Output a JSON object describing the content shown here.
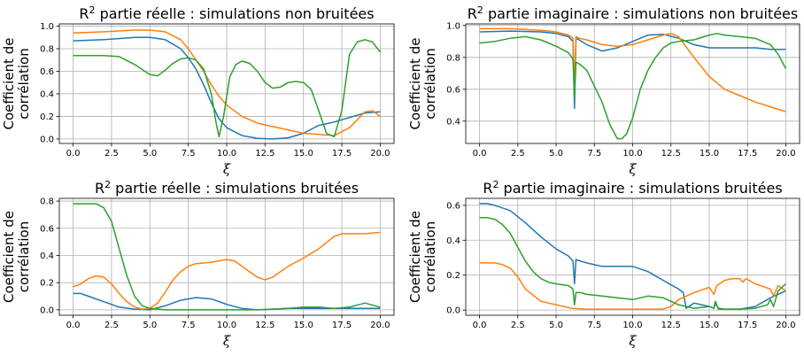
{
  "figure": {
    "colors": [
      "#1f77b4",
      "#ff7f0e",
      "#2ca02c"
    ],
    "grid": true
  },
  "chart_data": [
    {
      "type": "line",
      "title_base": "R",
      "title_sup": "2",
      "title_rest": " partie réelle : simulations non bruitées",
      "xlabel": "ξ",
      "ylabel_lines": [
        "Coefficient de",
        "corrélation"
      ],
      "xlim": [
        -0.9,
        20.9
      ],
      "ylim": [
        -0.04,
        1.02
      ],
      "xticks": [
        0,
        2.5,
        5,
        7.5,
        10,
        12.5,
        15,
        17.5,
        20
      ],
      "xtick_labels": [
        "0.0",
        "2.5",
        "5.0",
        "7.5",
        "10.0",
        "12.5",
        "15.0",
        "17.5",
        "20.0"
      ],
      "yticks": [
        0,
        0.2,
        0.4,
        0.6,
        0.8,
        1.0
      ],
      "ytick_labels": [
        "0.0",
        "0.2",
        "0.4",
        "0.6",
        "0.8",
        "1.0"
      ],
      "series": [
        {
          "x": [
            0,
            2,
            4,
            5,
            6,
            7,
            7.5,
            8,
            8.5,
            9,
            9.5,
            10,
            11,
            12,
            13,
            14,
            15,
            16,
            17,
            18,
            19,
            20
          ],
          "values": [
            0.87,
            0.88,
            0.9,
            0.9,
            0.88,
            0.8,
            0.72,
            0.62,
            0.48,
            0.32,
            0.18,
            0.1,
            0.03,
            0.005,
            0.0,
            0.01,
            0.05,
            0.12,
            0.15,
            0.19,
            0.23,
            0.24
          ]
        },
        {
          "x": [
            0,
            2,
            4,
            5,
            6,
            7,
            7.5,
            8,
            8.5,
            9,
            9.5,
            10,
            11,
            12,
            13,
            14,
            15,
            16,
            17,
            18,
            19,
            19.5,
            20
          ],
          "values": [
            0.94,
            0.95,
            0.965,
            0.965,
            0.95,
            0.88,
            0.8,
            0.7,
            0.6,
            0.48,
            0.38,
            0.3,
            0.2,
            0.14,
            0.11,
            0.08,
            0.05,
            0.04,
            0.03,
            0.1,
            0.24,
            0.25,
            0.2
          ]
        },
        {
          "x": [
            0,
            2,
            3,
            4,
            5,
            5.5,
            6,
            6.5,
            7,
            7.5,
            8,
            8.5,
            9,
            9.3,
            9.5,
            9.8,
            10.2,
            10.6,
            11,
            11.5,
            12,
            12.5,
            13,
            13.5,
            14,
            14.5,
            15,
            15.5,
            16,
            16.5,
            17,
            17.5,
            18,
            18.5,
            19,
            19.5,
            20
          ],
          "values": [
            0.74,
            0.74,
            0.73,
            0.66,
            0.57,
            0.56,
            0.61,
            0.67,
            0.71,
            0.72,
            0.7,
            0.62,
            0.4,
            0.15,
            0.02,
            0.2,
            0.55,
            0.66,
            0.69,
            0.67,
            0.6,
            0.5,
            0.45,
            0.46,
            0.5,
            0.51,
            0.5,
            0.44,
            0.25,
            0.05,
            0.02,
            0.25,
            0.75,
            0.86,
            0.88,
            0.86,
            0.77
          ]
        }
      ]
    },
    {
      "type": "line",
      "title_base": "R",
      "title_sup": "2",
      "title_rest": " partie imaginaire : simulations non bruitées",
      "xlabel": "ξ",
      "ylabel_lines": [
        "Coefficient de",
        "corrélation"
      ],
      "xlim": [
        -0.9,
        20.9
      ],
      "ylim": [
        0.26,
        1.01
      ],
      "xticks": [
        0,
        2.5,
        5,
        7.5,
        10,
        12.5,
        15,
        17.5,
        20
      ],
      "xtick_labels": [
        "0.0",
        "2.5",
        "5.0",
        "7.5",
        "10.0",
        "12.5",
        "15.0",
        "17.5",
        "20.0"
      ],
      "yticks": [
        0.4,
        0.6,
        0.8,
        1.0
      ],
      "ytick_labels": [
        "0.4",
        "0.6",
        "0.8",
        "1.0"
      ],
      "series": [
        {
          "x": [
            0,
            2,
            4,
            5,
            5.8,
            6.1,
            6.2,
            6.3,
            6.5,
            7,
            8,
            9,
            10,
            11,
            12,
            13,
            14,
            15,
            16,
            17,
            18,
            19,
            20
          ],
          "values": [
            0.96,
            0.965,
            0.96,
            0.95,
            0.93,
            0.9,
            0.48,
            0.92,
            0.91,
            0.88,
            0.84,
            0.86,
            0.9,
            0.94,
            0.945,
            0.92,
            0.88,
            0.86,
            0.86,
            0.86,
            0.86,
            0.85,
            0.85
          ]
        },
        {
          "x": [
            0,
            2,
            4,
            5,
            5.8,
            6.1,
            6.2,
            6.3,
            6.5,
            7,
            8,
            9,
            10,
            11,
            12,
            12.5,
            13,
            14,
            15,
            16,
            17,
            18,
            19,
            20
          ],
          "values": [
            0.98,
            0.98,
            0.97,
            0.96,
            0.94,
            0.92,
            0.62,
            0.93,
            0.92,
            0.91,
            0.88,
            0.87,
            0.88,
            0.91,
            0.94,
            0.95,
            0.93,
            0.8,
            0.68,
            0.6,
            0.56,
            0.52,
            0.49,
            0.46
          ]
        },
        {
          "x": [
            0,
            1,
            2,
            3,
            4,
            5,
            5.8,
            6.1,
            6.2,
            6.3,
            6.5,
            7,
            8,
            8.5,
            9,
            9.3,
            9.6,
            10,
            10.5,
            11,
            11.5,
            12,
            12.5,
            13,
            14,
            15,
            15.5,
            16,
            17,
            18,
            19,
            19.5,
            20
          ],
          "values": [
            0.89,
            0.9,
            0.92,
            0.93,
            0.91,
            0.87,
            0.83,
            0.79,
            0.55,
            0.77,
            0.76,
            0.72,
            0.52,
            0.38,
            0.29,
            0.29,
            0.32,
            0.42,
            0.6,
            0.72,
            0.8,
            0.86,
            0.89,
            0.9,
            0.91,
            0.94,
            0.95,
            0.94,
            0.93,
            0.92,
            0.88,
            0.82,
            0.73
          ]
        }
      ]
    },
    {
      "type": "line",
      "title_base": "R",
      "title_sup": "2",
      "title_rest": " partie réelle : simulations bruitées",
      "xlabel": "ξ",
      "ylabel_lines": [
        "Coefficient de",
        "corrélation"
      ],
      "xlim": [
        -0.9,
        20.9
      ],
      "ylim": [
        -0.04,
        0.82
      ],
      "xticks": [
        0,
        2.5,
        5,
        7.5,
        10,
        12.5,
        15,
        17.5,
        20
      ],
      "xtick_labels": [
        "0.0",
        "2.5",
        "5.0",
        "7.5",
        "10.0",
        "12.5",
        "15.0",
        "17.5",
        "20.0"
      ],
      "yticks": [
        0,
        0.2,
        0.4,
        0.6,
        0.8
      ],
      "ytick_labels": [
        "0.0",
        "0.2",
        "0.4",
        "0.6",
        "0.8"
      ],
      "series": [
        {
          "x": [
            0,
            0.5,
            1,
            2,
            3,
            4,
            5,
            6,
            7,
            8,
            9,
            10,
            11,
            12,
            13,
            14,
            15,
            16,
            17,
            18,
            19,
            20
          ],
          "values": [
            0.12,
            0.12,
            0.1,
            0.06,
            0.02,
            0.005,
            0.0,
            0.03,
            0.07,
            0.09,
            0.08,
            0.04,
            0.01,
            0.0,
            0.005,
            0.01,
            0.01,
            0.01,
            0.01,
            0.01,
            0.01,
            0.01
          ]
        },
        {
          "x": [
            0,
            0.5,
            1,
            1.5,
            2,
            2.5,
            3,
            3.5,
            4,
            4.5,
            5,
            5.5,
            6,
            6.5,
            7,
            7.5,
            8,
            9,
            10,
            10.5,
            11,
            12,
            12.5,
            13,
            14,
            15,
            16,
            17,
            17.5,
            18,
            19,
            20
          ],
          "values": [
            0.17,
            0.19,
            0.23,
            0.25,
            0.24,
            0.19,
            0.12,
            0.06,
            0.02,
            0.005,
            0.01,
            0.05,
            0.13,
            0.22,
            0.28,
            0.32,
            0.34,
            0.35,
            0.37,
            0.36,
            0.32,
            0.24,
            0.22,
            0.24,
            0.32,
            0.38,
            0.45,
            0.54,
            0.56,
            0.56,
            0.56,
            0.57
          ]
        },
        {
          "x": [
            0,
            0.5,
            1,
            1.5,
            2,
            2.5,
            3,
            3.5,
            4,
            4.5,
            5,
            5.5,
            6,
            7,
            8,
            10,
            12,
            14,
            15,
            16,
            17,
            18,
            19,
            20
          ],
          "values": [
            0.78,
            0.78,
            0.78,
            0.78,
            0.75,
            0.65,
            0.45,
            0.25,
            0.1,
            0.03,
            0.01,
            0.005,
            0.0,
            0.0,
            0.0,
            0.0,
            0.0,
            0.01,
            0.02,
            0.02,
            0.01,
            0.02,
            0.05,
            0.02
          ]
        }
      ]
    },
    {
      "type": "line",
      "title_base": "R",
      "title_sup": "2",
      "title_rest": " partie imaginaire : simulations bruitées",
      "xlabel": "ξ",
      "ylabel_lines": [
        "Coefficient de",
        "corrélation"
      ],
      "xlim": [
        -0.9,
        20.9
      ],
      "ylim": [
        -0.03,
        0.64
      ],
      "xticks": [
        0,
        2.5,
        5,
        7.5,
        10,
        12.5,
        15,
        17.5,
        20
      ],
      "xtick_labels": [
        "0.0",
        "2.5",
        "5.0",
        "7.5",
        "10.0",
        "12.5",
        "15.0",
        "17.5",
        "20.0"
      ],
      "yticks": [
        0,
        0.2,
        0.4,
        0.6
      ],
      "ytick_labels": [
        "0.0",
        "0.2",
        "0.4",
        "0.6"
      ],
      "series": [
        {
          "x": [
            0,
            0.5,
            1,
            2,
            3,
            4,
            5,
            5.8,
            6.1,
            6.2,
            6.3,
            6.6,
            7,
            8,
            9,
            10,
            11,
            12,
            13,
            13.3,
            13.5,
            14,
            15,
            15.3,
            15.4,
            15.6,
            16,
            17,
            18,
            19,
            20
          ],
          "values": [
            0.61,
            0.61,
            0.6,
            0.57,
            0.5,
            0.42,
            0.35,
            0.31,
            0.28,
            0.15,
            0.29,
            0.28,
            0.27,
            0.25,
            0.25,
            0.25,
            0.22,
            0.17,
            0.12,
            0.1,
            0.01,
            0.04,
            0.02,
            0.01,
            0.04,
            0.01,
            0.005,
            0.005,
            0.02,
            0.07,
            0.11
          ]
        },
        {
          "x": [
            0,
            0.5,
            1,
            1.5,
            2,
            2.5,
            3,
            4,
            5,
            6,
            7,
            8,
            9,
            10,
            11,
            12,
            12.5,
            13,
            14,
            15,
            15.3,
            15.5,
            16,
            16.5,
            17,
            17.2,
            17.4,
            18,
            19,
            19.2,
            19.5,
            20
          ],
          "values": [
            0.27,
            0.27,
            0.27,
            0.26,
            0.24,
            0.19,
            0.12,
            0.05,
            0.03,
            0.01,
            0.005,
            0.005,
            0.005,
            0.005,
            0.005,
            0.005,
            0.02,
            0.06,
            0.1,
            0.13,
            0.09,
            0.14,
            0.17,
            0.18,
            0.18,
            0.16,
            0.18,
            0.15,
            0.12,
            0.08,
            0.14,
            0.11
          ]
        },
        {
          "x": [
            0,
            0.5,
            1,
            1.5,
            2,
            2.5,
            3,
            3.5,
            4,
            4.5,
            5,
            5.8,
            6.1,
            6.2,
            6.3,
            6.6,
            7,
            8,
            9,
            10,
            11,
            12,
            12.5,
            13,
            13.5,
            14,
            15,
            15.3,
            15.4,
            15.6,
            16,
            17,
            18,
            18.8,
            19,
            19.2,
            19.5,
            20
          ],
          "values": [
            0.53,
            0.53,
            0.52,
            0.49,
            0.44,
            0.36,
            0.28,
            0.22,
            0.18,
            0.16,
            0.15,
            0.14,
            0.12,
            0.03,
            0.1,
            0.1,
            0.09,
            0.08,
            0.07,
            0.06,
            0.08,
            0.07,
            0.05,
            0.03,
            0.02,
            0.01,
            0.02,
            0.01,
            0.05,
            0.005,
            0.005,
            0.005,
            0.01,
            0.03,
            0.06,
            0.02,
            0.11,
            0.15
          ]
        }
      ]
    }
  ]
}
